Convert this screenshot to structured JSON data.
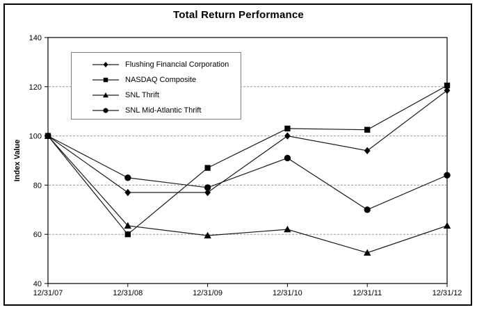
{
  "window": {
    "background": "#ffffff",
    "frame_border_color": "#000000"
  },
  "chart_data": {
    "type": "line",
    "title": "Total Return Performance",
    "xlabel": "",
    "ylabel": "Index Value",
    "categories": [
      "12/31/07",
      "12/31/08",
      "12/31/09",
      "12/31/10",
      "12/31/11",
      "12/31/12"
    ],
    "ylim": [
      40,
      140
    ],
    "yticks": [
      40,
      60,
      80,
      100,
      120,
      140
    ],
    "gridline_values": [
      60,
      80,
      100,
      120
    ],
    "grid": "horizontal dashed",
    "legend_position": "upper-left inside plot",
    "series": [
      {
        "name": "Flushing Financial Corporation",
        "marker": "diamond",
        "color": "#1a1a1a",
        "values": [
          100,
          77,
          77,
          100,
          94,
          118.5
        ]
      },
      {
        "name": "NASDAQ Composite",
        "marker": "square",
        "color": "#1a1a1a",
        "values": [
          100,
          60,
          87,
          103,
          102.5,
          120.5
        ]
      },
      {
        "name": "SNL Thrift",
        "marker": "triangle",
        "color": "#1a1a1a",
        "values": [
          100,
          63.5,
          59.5,
          62,
          52.5,
          63.5
        ]
      },
      {
        "name": "SNL Mid-Atlantic Thrift",
        "marker": "circle",
        "color": "#1a1a1a",
        "values": [
          100,
          83,
          79,
          91,
          70,
          84
        ]
      }
    ],
    "colors": {
      "line": "#1a1a1a",
      "marker_fill": "#000000",
      "gridline": "#999999",
      "axis": "#000000",
      "text": "#000000",
      "legend_border": "#808080"
    }
  }
}
